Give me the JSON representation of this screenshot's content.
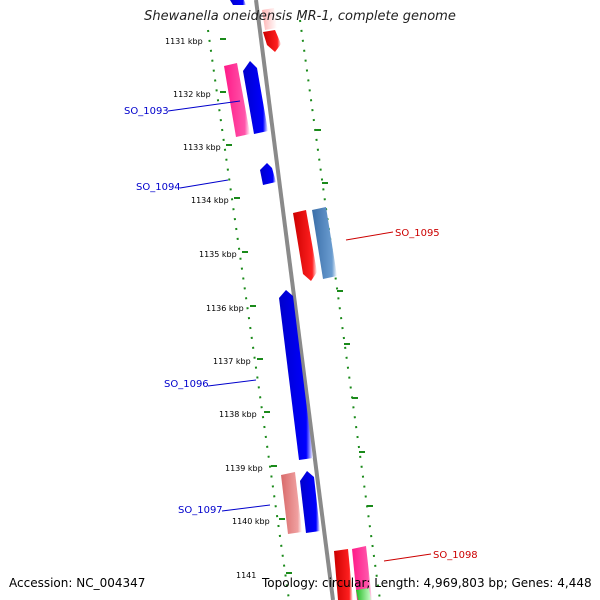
{
  "title": "Shewanella oneidensis MR-1, complete genome",
  "accession_text": "Accession: NC_004347",
  "summary_text": "Topology: circular; Length: 4,969,803 bp; Genes: 4,448",
  "colors": {
    "backbone": "#8a8a8a",
    "tick": "#1a8a1a",
    "plus_label": "#0000cc",
    "minus_label": "#cc0000"
  },
  "ticks": [
    "1131 kbp",
    "1132 kbp",
    "1133 kbp",
    "1134 kbp",
    "1135 kbp",
    "1136 kbp",
    "1137 kbp",
    "1138 kbp",
    "1139 kbp",
    "1140 kbp",
    "1141"
  ],
  "gene_labels": [
    {
      "text": "SO_1093",
      "strand": "plus"
    },
    {
      "text": "SO_1094",
      "strand": "plus"
    },
    {
      "text": "SO_1095",
      "strand": "minus"
    },
    {
      "text": "SO_1096",
      "strand": "plus"
    },
    {
      "text": "SO_1097",
      "strand": "plus"
    },
    {
      "text": "SO_1098",
      "strand": "minus"
    }
  ],
  "features": [
    {
      "name": "top-blue-gene",
      "color": "#0000ee",
      "dir": "up"
    },
    {
      "name": "top-red-gene",
      "color": "#ff1a1a",
      "dir": "down"
    },
    {
      "name": "so1093-pink-bar",
      "color": "#ff2a90",
      "dir": "none"
    },
    {
      "name": "so1093-gene",
      "color": "#0000ee",
      "dir": "up"
    },
    {
      "name": "so1094-gene",
      "color": "#0000ee",
      "dir": "up"
    },
    {
      "name": "so1095-gene",
      "color": "#ff1a1a",
      "dir": "down"
    },
    {
      "name": "so1095-steelblue-bar",
      "color": "#4a80b8",
      "dir": "none"
    },
    {
      "name": "so1096-gene",
      "color": "#0000ee",
      "dir": "up"
    },
    {
      "name": "so1097-salmon-bar",
      "color": "#e87a7a",
      "dir": "none"
    },
    {
      "name": "so1097-gene",
      "color": "#0000ee",
      "dir": "up"
    },
    {
      "name": "so1098-red-bar",
      "color": "#ff1a1a",
      "dir": "none"
    },
    {
      "name": "so1098-pink-bar",
      "color": "#ff2a90",
      "dir": "none"
    },
    {
      "name": "so1098-green-bar",
      "color": "#33cc33",
      "dir": "none"
    }
  ]
}
